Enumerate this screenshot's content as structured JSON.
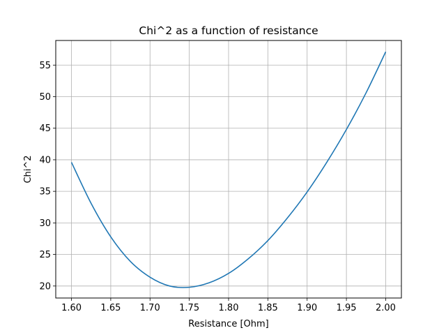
{
  "chart_data": {
    "type": "line",
    "title": "Chi^2 as a function of resistance",
    "xlabel": "Resistance [Ohm]",
    "ylabel": "Chi^2",
    "xlim": [
      1.58,
      2.02
    ],
    "ylim": [
      18.1,
      58.9
    ],
    "grid": true,
    "x_ticks": [
      "1.60",
      "1.65",
      "1.70",
      "1.75",
      "1.80",
      "1.85",
      "1.90",
      "1.95",
      "2.00"
    ],
    "y_ticks": [
      "20",
      "25",
      "30",
      "35",
      "40",
      "45",
      "50",
      "55"
    ],
    "series": [
      {
        "color": "#1f77b4",
        "x": [
          1.6,
          1.625,
          1.65,
          1.675,
          1.7,
          1.725,
          1.75,
          1.775,
          1.8,
          1.825,
          1.85,
          1.875,
          1.9,
          1.925,
          1.95,
          1.975,
          2.0
        ],
        "y": [
          39.6,
          33.1,
          27.8,
          23.9,
          21.4,
          20.0,
          19.8,
          20.5,
          22.0,
          24.3,
          27.2,
          30.8,
          34.9,
          39.6,
          44.8,
          50.6,
          57.1
        ]
      }
    ]
  }
}
